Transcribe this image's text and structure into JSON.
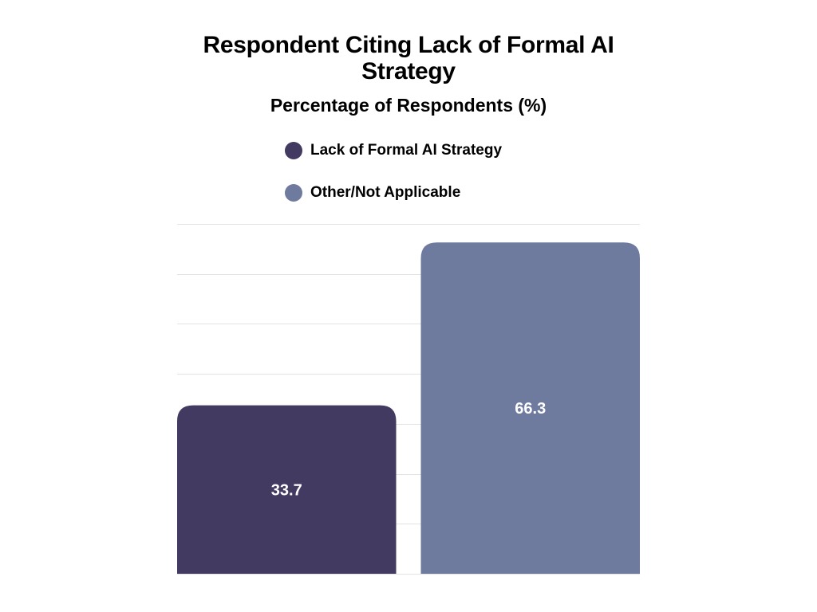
{
  "chart_data": {
    "type": "bar",
    "title": "Respondent Citing Lack of Formal AI Strategy",
    "subtitle": "Percentage of Respondents (%)",
    "categories": [
      "Lack of Formal AI Strategy",
      "Other/Not Applicable"
    ],
    "values": [
      33.7,
      66.3
    ],
    "data_labels": [
      "33.7",
      "66.3"
    ],
    "colors": [
      "#423a60",
      "#6e7b9e"
    ],
    "legend": {
      "placement": "top-center",
      "entries": [
        {
          "label": "Lack of Formal AI Strategy",
          "color": "#423a60"
        },
        {
          "label": "Other/Not Applicable",
          "color": "#6e7b9e"
        }
      ]
    },
    "xlabel": "",
    "ylabel": "",
    "ylim": [
      0,
      70
    ],
    "grid": true,
    "gridline_color": "#e3e3e3"
  }
}
